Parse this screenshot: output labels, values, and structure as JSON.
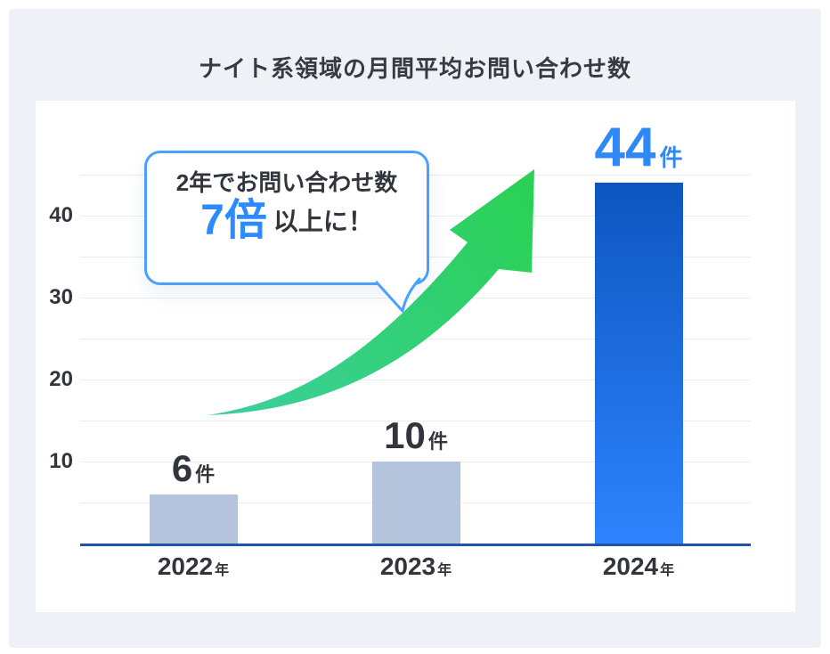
{
  "title": "ナイト系領域の月間平均お問い合わせ数",
  "callout": {
    "line1": "2年でお問い合わせ数",
    "multiplier": "7倍",
    "suffix": "以上に！"
  },
  "bars": [
    {
      "value": "6",
      "unit": "件",
      "year": "2022",
      "year_suffix": "年"
    },
    {
      "value": "10",
      "unit": "件",
      "year": "2023",
      "year_suffix": "年"
    },
    {
      "value": "44",
      "unit": "件",
      "year": "2024",
      "year_suffix": "年"
    }
  ],
  "chart_data": {
    "type": "bar",
    "title": "ナイト系領域の月間平均お問い合わせ数",
    "categories": [
      "2022年",
      "2023年",
      "2024年"
    ],
    "values": [
      6,
      10,
      44
    ],
    "unit": "件",
    "xlabel": "",
    "ylabel": "",
    "ylim": [
      0,
      47
    ],
    "ytick_values": [
      10,
      20,
      30,
      40
    ],
    "gridline_interval": 5,
    "grid": "on",
    "legend": "none",
    "annotation": "2年でお問い合わせ数7倍以上に！",
    "bar_colors": [
      "#b6c3dc",
      "#b6c3dc",
      "gradient #0d56c1 to #2e83fd"
    ]
  },
  "colors": {
    "panel_bg": "#eef1f6",
    "card_bg": "#ffffff",
    "title_text": "#363a42",
    "axis_text": "#32363c",
    "gridline": "#ececec",
    "baseline": "#1d56a8",
    "bar_default": "#b6c3dc",
    "bar_highlight_top": "#0d56c1",
    "bar_highlight_bottom": "#2e83fd",
    "value_highlight": "#2e89f7",
    "callout_border": "#4aa0ff",
    "callout_highlight": "#2b8bff",
    "arrow_start": "#3ccf9f",
    "arrow_end": "#2ad155"
  }
}
